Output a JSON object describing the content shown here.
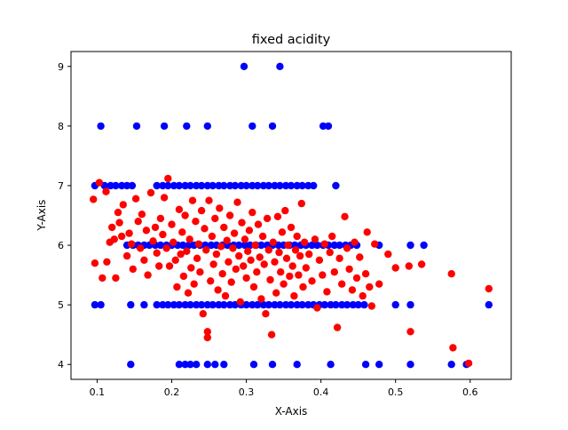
{
  "chart_data": {
    "type": "scatter",
    "title": "fixed acidity",
    "xlabel": "X-Axis",
    "ylabel": "Y-Axis",
    "xlim": [
      0.065,
      0.655
    ],
    "ylim": [
      3.75,
      9.25
    ],
    "xticks": [
      0.1,
      0.2,
      0.3,
      0.4,
      0.5,
      0.6
    ],
    "xtick_labels": [
      "0.1",
      "0.2",
      "0.3",
      "0.4",
      "0.5",
      "0.6"
    ],
    "yticks": [
      4,
      5,
      6,
      7,
      8,
      9
    ],
    "ytick_labels": [
      "4",
      "5",
      "6",
      "7",
      "8",
      "9"
    ],
    "grid": false,
    "legend": "none",
    "series": [
      {
        "color": "#0000ff",
        "points": [
          [
            0.297,
            9
          ],
          [
            0.345,
            9
          ],
          [
            0.105,
            8
          ],
          [
            0.153,
            8
          ],
          [
            0.19,
            8
          ],
          [
            0.22,
            8
          ],
          [
            0.248,
            8
          ],
          [
            0.308,
            8
          ],
          [
            0.335,
            8
          ],
          [
            0.403,
            8
          ],
          [
            0.41,
            8
          ],
          [
            0.097,
            7
          ],
          [
            0.11,
            7
          ],
          [
            0.118,
            7
          ],
          [
            0.125,
            7
          ],
          [
            0.133,
            7
          ],
          [
            0.14,
            7
          ],
          [
            0.147,
            7
          ],
          [
            0.18,
            7
          ],
          [
            0.188,
            7
          ],
          [
            0.195,
            7
          ],
          [
            0.203,
            7
          ],
          [
            0.21,
            7
          ],
          [
            0.218,
            7
          ],
          [
            0.225,
            7
          ],
          [
            0.233,
            7
          ],
          [
            0.24,
            7
          ],
          [
            0.248,
            7
          ],
          [
            0.255,
            7
          ],
          [
            0.263,
            7
          ],
          [
            0.27,
            7
          ],
          [
            0.278,
            7
          ],
          [
            0.285,
            7
          ],
          [
            0.293,
            7
          ],
          [
            0.3,
            7
          ],
          [
            0.308,
            7
          ],
          [
            0.315,
            7
          ],
          [
            0.323,
            7
          ],
          [
            0.33,
            7
          ],
          [
            0.338,
            7
          ],
          [
            0.345,
            7
          ],
          [
            0.353,
            7
          ],
          [
            0.36,
            7
          ],
          [
            0.368,
            7
          ],
          [
            0.375,
            7
          ],
          [
            0.383,
            7
          ],
          [
            0.39,
            7
          ],
          [
            0.42,
            7
          ],
          [
            0.14,
            6
          ],
          [
            0.148,
            6
          ],
          [
            0.155,
            6
          ],
          [
            0.163,
            6
          ],
          [
            0.17,
            6
          ],
          [
            0.178,
            6
          ],
          [
            0.185,
            6
          ],
          [
            0.193,
            6
          ],
          [
            0.2,
            6
          ],
          [
            0.208,
            6
          ],
          [
            0.215,
            6
          ],
          [
            0.223,
            6
          ],
          [
            0.23,
            6
          ],
          [
            0.238,
            6
          ],
          [
            0.245,
            6
          ],
          [
            0.253,
            6
          ],
          [
            0.26,
            6
          ],
          [
            0.268,
            6
          ],
          [
            0.275,
            6
          ],
          [
            0.283,
            6
          ],
          [
            0.29,
            6
          ],
          [
            0.298,
            6
          ],
          [
            0.305,
            6
          ],
          [
            0.313,
            6
          ],
          [
            0.32,
            6
          ],
          [
            0.328,
            6
          ],
          [
            0.335,
            6
          ],
          [
            0.343,
            6
          ],
          [
            0.35,
            6
          ],
          [
            0.358,
            6
          ],
          [
            0.365,
            6
          ],
          [
            0.373,
            6
          ],
          [
            0.38,
            6
          ],
          [
            0.388,
            6
          ],
          [
            0.395,
            6
          ],
          [
            0.403,
            6
          ],
          [
            0.41,
            6
          ],
          [
            0.418,
            6
          ],
          [
            0.425,
            6
          ],
          [
            0.433,
            6
          ],
          [
            0.44,
            6
          ],
          [
            0.448,
            6
          ],
          [
            0.478,
            6
          ],
          [
            0.52,
            6
          ],
          [
            0.538,
            6
          ],
          [
            0.097,
            5
          ],
          [
            0.105,
            5
          ],
          [
            0.145,
            5
          ],
          [
            0.163,
            5
          ],
          [
            0.18,
            5
          ],
          [
            0.188,
            5
          ],
          [
            0.195,
            5
          ],
          [
            0.203,
            5
          ],
          [
            0.21,
            5
          ],
          [
            0.218,
            5
          ],
          [
            0.225,
            5
          ],
          [
            0.233,
            5
          ],
          [
            0.24,
            5
          ],
          [
            0.248,
            5
          ],
          [
            0.255,
            5
          ],
          [
            0.263,
            5
          ],
          [
            0.27,
            5
          ],
          [
            0.278,
            5
          ],
          [
            0.285,
            5
          ],
          [
            0.293,
            5
          ],
          [
            0.3,
            5
          ],
          [
            0.308,
            5
          ],
          [
            0.315,
            5
          ],
          [
            0.323,
            5
          ],
          [
            0.33,
            5
          ],
          [
            0.338,
            5
          ],
          [
            0.345,
            5
          ],
          [
            0.353,
            5
          ],
          [
            0.36,
            5
          ],
          [
            0.368,
            5
          ],
          [
            0.375,
            5
          ],
          [
            0.383,
            5
          ],
          [
            0.39,
            5
          ],
          [
            0.398,
            5
          ],
          [
            0.405,
            5
          ],
          [
            0.413,
            5
          ],
          [
            0.42,
            5
          ],
          [
            0.428,
            5
          ],
          [
            0.435,
            5
          ],
          [
            0.443,
            5
          ],
          [
            0.45,
            5
          ],
          [
            0.458,
            5
          ],
          [
            0.5,
            5
          ],
          [
            0.52,
            5
          ],
          [
            0.625,
            5
          ],
          [
            0.145,
            4
          ],
          [
            0.21,
            4
          ],
          [
            0.218,
            4
          ],
          [
            0.225,
            4
          ],
          [
            0.233,
            4
          ],
          [
            0.248,
            4
          ],
          [
            0.258,
            4
          ],
          [
            0.27,
            4
          ],
          [
            0.31,
            4
          ],
          [
            0.335,
            4
          ],
          [
            0.368,
            4
          ],
          [
            0.413,
            4
          ],
          [
            0.46,
            4
          ],
          [
            0.478,
            4
          ],
          [
            0.52,
            4
          ],
          [
            0.575,
            4
          ],
          [
            0.595,
            4
          ]
        ]
      },
      {
        "color": "#ff0000",
        "points": [
          [
            0.095,
            6.77
          ],
          [
            0.097,
            5.7
          ],
          [
            0.103,
            7.05
          ],
          [
            0.107,
            5.45
          ],
          [
            0.112,
            6.9
          ],
          [
            0.113,
            5.72
          ],
          [
            0.117,
            6.05
          ],
          [
            0.12,
            6.3
          ],
          [
            0.123,
            6.1
          ],
          [
            0.125,
            5.45
          ],
          [
            0.128,
            6.55
          ],
          [
            0.13,
            6.38
          ],
          [
            0.133,
            6.15
          ],
          [
            0.135,
            6.68
          ],
          [
            0.14,
            5.82
          ],
          [
            0.143,
            6.2
          ],
          [
            0.146,
            6.02
          ],
          [
            0.148,
            5.6
          ],
          [
            0.152,
            6.78
          ],
          [
            0.155,
            6.4
          ],
          [
            0.158,
            5.95
          ],
          [
            0.16,
            6.52
          ],
          [
            0.163,
            5.75
          ],
          [
            0.166,
            6.25
          ],
          [
            0.168,
            5.5
          ],
          [
            0.172,
            6.88
          ],
          [
            0.175,
            6.07
          ],
          [
            0.178,
            6.3
          ],
          [
            0.18,
            5.87
          ],
          [
            0.183,
            5.65
          ],
          [
            0.185,
            6.45
          ],
          [
            0.188,
            6.18
          ],
          [
            0.19,
            6.8
          ],
          [
            0.193,
            5.95
          ],
          [
            0.195,
            7.12
          ],
          [
            0.197,
            5.65
          ],
          [
            0.2,
            6.35
          ],
          [
            0.202,
            6.05
          ],
          [
            0.205,
            5.75
          ],
          [
            0.207,
            5.3
          ],
          [
            0.21,
            6.6
          ],
          [
            0.212,
            5.85
          ],
          [
            0.214,
            6.22
          ],
          [
            0.216,
            5.48
          ],
          [
            0.218,
            6.5
          ],
          [
            0.22,
            5.9
          ],
          [
            0.222,
            5.2
          ],
          [
            0.224,
            6.1
          ],
          [
            0.226,
            5.62
          ],
          [
            0.228,
            6.75
          ],
          [
            0.23,
            5.35
          ],
          [
            0.232,
            6.4
          ],
          [
            0.234,
            5.78
          ],
          [
            0.236,
            6.02
          ],
          [
            0.238,
            5.55
          ],
          [
            0.24,
            6.58
          ],
          [
            0.242,
            4.85
          ],
          [
            0.244,
            6.28
          ],
          [
            0.246,
            5.92
          ],
          [
            0.248,
            4.55
          ],
          [
            0.248,
            4.45
          ],
          [
            0.25,
            6.75
          ],
          [
            0.252,
            5.4
          ],
          [
            0.254,
            6.15
          ],
          [
            0.256,
            5.68
          ],
          [
            0.258,
            6.45
          ],
          [
            0.26,
            5.85
          ],
          [
            0.262,
            5.25
          ],
          [
            0.264,
            6.62
          ],
          [
            0.266,
            5.98
          ],
          [
            0.268,
            5.52
          ],
          [
            0.27,
            6.3
          ],
          [
            0.272,
            5.15
          ],
          [
            0.274,
            6.08
          ],
          [
            0.276,
            5.72
          ],
          [
            0.278,
            6.5
          ],
          [
            0.28,
            5.38
          ],
          [
            0.282,
            5.95
          ],
          [
            0.284,
            6.2
          ],
          [
            0.286,
            5.6
          ],
          [
            0.288,
            6.72
          ],
          [
            0.29,
            5.82
          ],
          [
            0.292,
            5.05
          ],
          [
            0.294,
            6.38
          ],
          [
            0.296,
            5.65
          ],
          [
            0.298,
            6.1
          ],
          [
            0.3,
            5.45
          ],
          [
            0.302,
            5.9
          ],
          [
            0.304,
            6.25
          ],
          [
            0.306,
            5.75
          ],
          [
            0.308,
            6.55
          ],
          [
            0.31,
            5.3
          ],
          [
            0.312,
            6.0
          ],
          [
            0.314,
            5.55
          ],
          [
            0.316,
            6.35
          ],
          [
            0.318,
            5.8
          ],
          [
            0.32,
            5.1
          ],
          [
            0.322,
            6.15
          ],
          [
            0.324,
            5.68
          ],
          [
            0.326,
            4.85
          ],
          [
            0.328,
            6.45
          ],
          [
            0.33,
            5.92
          ],
          [
            0.332,
            5.42
          ],
          [
            0.334,
            4.5
          ],
          [
            0.336,
            6.05
          ],
          [
            0.338,
            5.72
          ],
          [
            0.34,
            5.2
          ],
          [
            0.342,
            6.48
          ],
          [
            0.344,
            5.88
          ],
          [
            0.346,
            5.55
          ],
          [
            0.348,
            6.22
          ],
          [
            0.35,
            5.35
          ],
          [
            0.352,
            6.58
          ],
          [
            0.354,
            5.78
          ],
          [
            0.356,
            6.0
          ],
          [
            0.358,
            5.48
          ],
          [
            0.36,
            6.3
          ],
          [
            0.362,
            5.65
          ],
          [
            0.364,
            5.15
          ],
          [
            0.366,
            5.92
          ],
          [
            0.368,
            6.15
          ],
          [
            0.37,
            5.5
          ],
          [
            0.372,
            5.82
          ],
          [
            0.374,
            6.7
          ],
          [
            0.376,
            5.3
          ],
          [
            0.378,
            6.05
          ],
          [
            0.38,
            5.62
          ],
          [
            0.384,
            5.85
          ],
          [
            0.388,
            5.4
          ],
          [
            0.392,
            6.1
          ],
          [
            0.395,
            4.95
          ],
          [
            0.398,
            5.75
          ],
          [
            0.402,
            5.5
          ],
          [
            0.405,
            6.02
          ],
          [
            0.408,
            5.22
          ],
          [
            0.412,
            5.88
          ],
          [
            0.415,
            6.15
          ],
          [
            0.418,
            5.55
          ],
          [
            0.422,
            4.62
          ],
          [
            0.425,
            5.78
          ],
          [
            0.428,
            5.35
          ],
          [
            0.432,
            6.48
          ],
          [
            0.435,
            5.95
          ],
          [
            0.438,
            5.6
          ],
          [
            0.442,
            5.25
          ],
          [
            0.445,
            6.05
          ],
          [
            0.448,
            5.45
          ],
          [
            0.452,
            5.8
          ],
          [
            0.456,
            5.15
          ],
          [
            0.46,
            5.52
          ],
          [
            0.462,
            6.22
          ],
          [
            0.465,
            5.3
          ],
          [
            0.468,
            4.98
          ],
          [
            0.472,
            6.02
          ],
          [
            0.478,
            5.35
          ],
          [
            0.49,
            5.85
          ],
          [
            0.5,
            5.62
          ],
          [
            0.518,
            5.65
          ],
          [
            0.52,
            4.55
          ],
          [
            0.535,
            5.68
          ],
          [
            0.575,
            5.52
          ],
          [
            0.577,
            4.28
          ],
          [
            0.598,
            4.02
          ],
          [
            0.625,
            5.27
          ]
        ]
      }
    ]
  }
}
